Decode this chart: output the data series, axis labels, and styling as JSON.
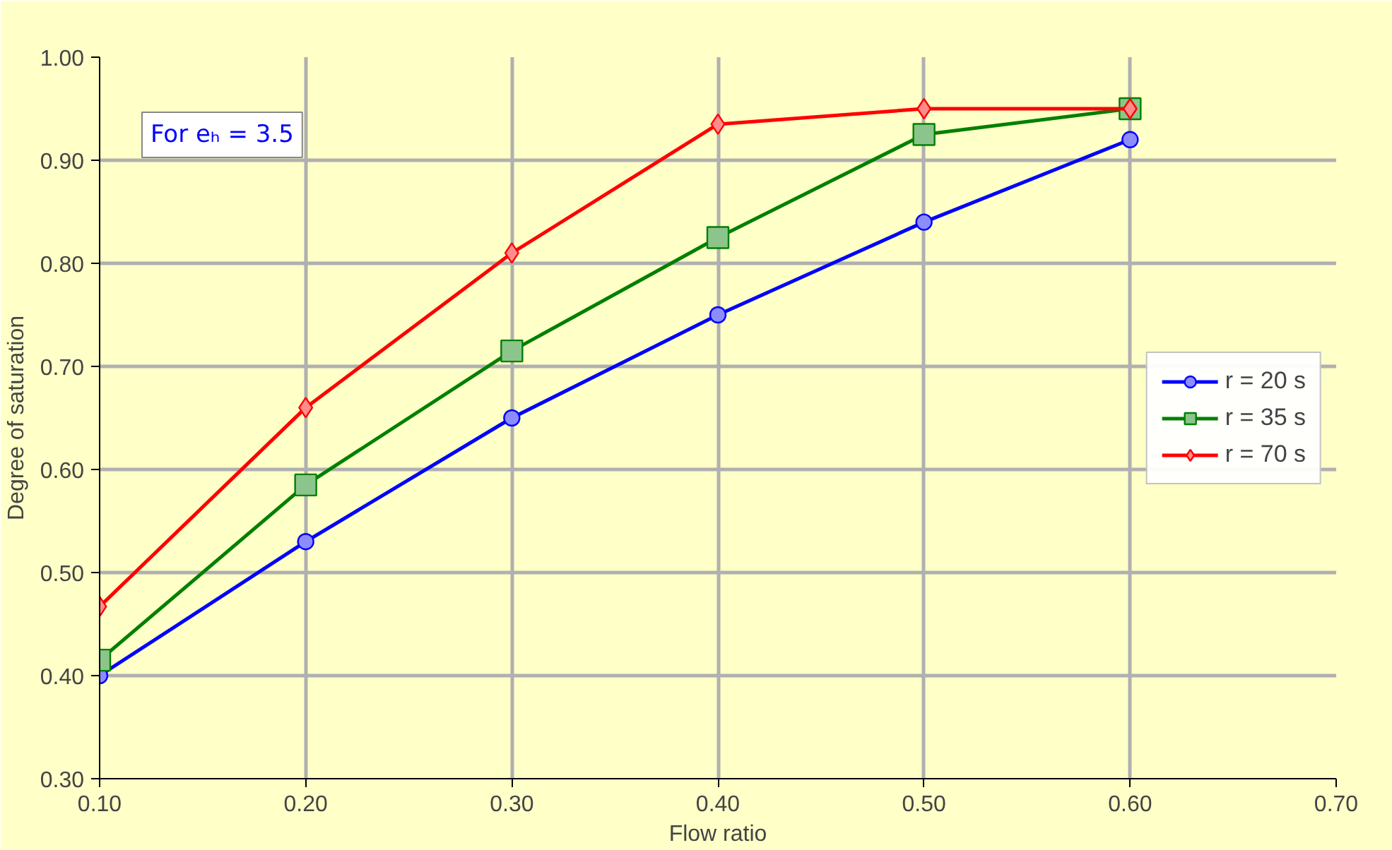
{
  "chart_data": {
    "type": "line",
    "xlabel": "Flow ratio",
    "ylabel": "Degree of saturation",
    "annotations": [
      "For eₕ = 3.5"
    ],
    "x": [
      0.1,
      0.2,
      0.3,
      0.4,
      0.5,
      0.6
    ],
    "series": [
      {
        "name": "r = 20 s",
        "color": "#0000ff",
        "marker": "circle",
        "values": [
          0.4,
          0.53,
          0.65,
          0.75,
          0.84,
          0.92
        ]
      },
      {
        "name": "r = 35 s",
        "color": "#008000",
        "marker": "square",
        "values": [
          0.415,
          0.585,
          0.715,
          0.825,
          0.925,
          0.95
        ]
      },
      {
        "name": "r = 70 s",
        "color": "#ff0000",
        "marker": "diamond",
        "values": [
          0.467,
          0.66,
          0.81,
          0.935,
          0.95,
          0.95
        ]
      }
    ],
    "xlim": [
      0.1,
      0.7
    ],
    "ylim": [
      0.3,
      1.0
    ],
    "xticks": [
      {
        "value": 0.1,
        "label": "0.10"
      },
      {
        "value": 0.2,
        "label": "0.20"
      },
      {
        "value": 0.3,
        "label": "0.30"
      },
      {
        "value": 0.4,
        "label": "0.40"
      },
      {
        "value": 0.5,
        "label": "0.50"
      },
      {
        "value": 0.6,
        "label": "0.60"
      },
      {
        "value": 0.7,
        "label": "0.70"
      }
    ],
    "yticks": [
      {
        "value": 0.3,
        "label": "0.30"
      },
      {
        "value": 0.4,
        "label": "0.40"
      },
      {
        "value": 0.5,
        "label": "0.50"
      },
      {
        "value": 0.6,
        "label": "0.60"
      },
      {
        "value": 0.7,
        "label": "0.70"
      },
      {
        "value": 0.8,
        "label": "0.80"
      },
      {
        "value": 0.9,
        "label": "0.90"
      },
      {
        "value": 1.0,
        "label": "1.00"
      }
    ],
    "grid": true,
    "legend": "right",
    "line_style": "solid"
  }
}
